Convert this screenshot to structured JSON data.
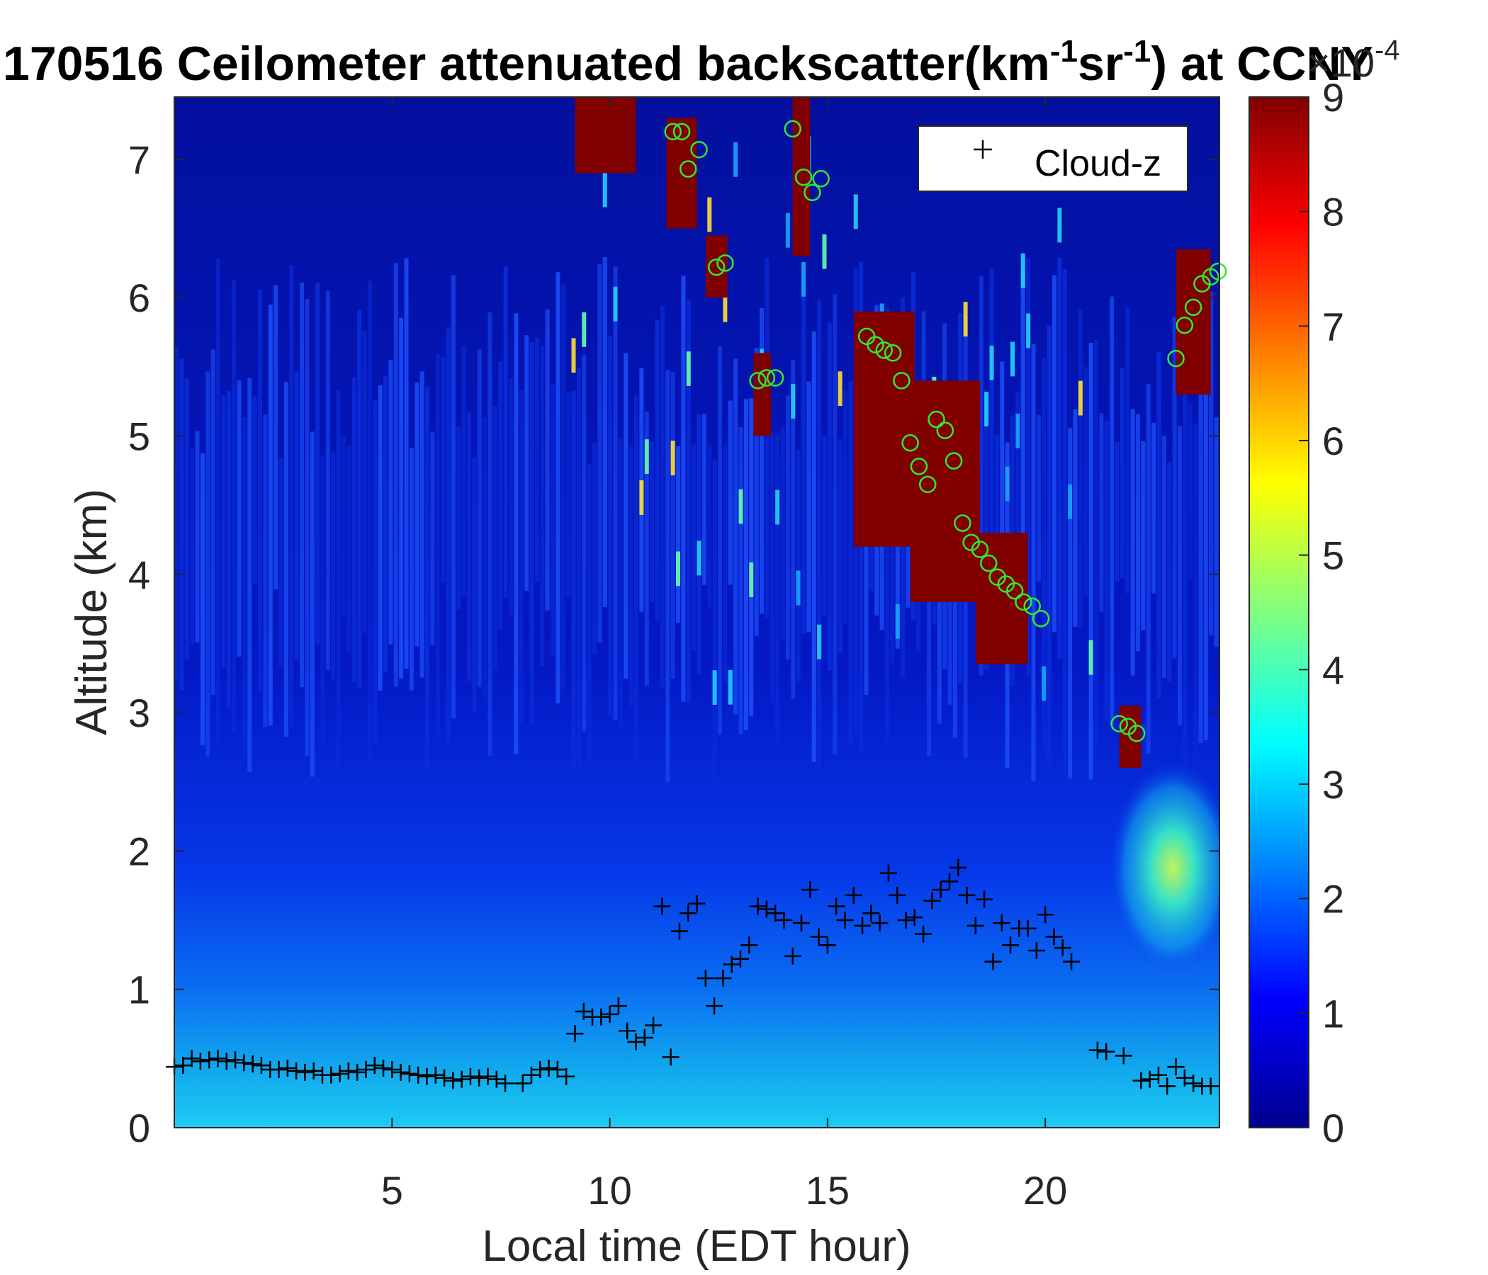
{
  "chart_data": {
    "type": "heatmap",
    "title": {
      "main": "170516 Ceilometer attenuated backscatter(km",
      "sup1": "-1",
      "mid": "sr",
      "sup2": "-1",
      "end": ") at CCNY"
    },
    "xlabel": "Local time (EDT hour)",
    "ylabel": "Altitude (km)",
    "xlim": [
      0,
      24
    ],
    "ylim": [
      0,
      7.45
    ],
    "xticks": [
      5,
      10,
      15,
      20
    ],
    "yticks": [
      0,
      1,
      2,
      3,
      4,
      5,
      6,
      7
    ],
    "colorbar": {
      "colormap": "jet",
      "clim": [
        0,
        9
      ],
      "ticks": [
        0,
        1,
        2,
        3,
        4,
        5,
        6,
        7,
        8,
        9
      ],
      "exponent_base": "×10",
      "exponent_power": "-4"
    },
    "legend": {
      "location": "top-right",
      "entries": [
        {
          "marker": "+",
          "label": "Cloud-z",
          "color": "#000000"
        }
      ]
    },
    "dense_cloud_regions": [
      {
        "t_start": 9.2,
        "t_end": 10.6,
        "z_low": 6.9,
        "z_high": 7.45
      },
      {
        "t_start": 11.3,
        "t_end": 12.0,
        "z_low": 6.5,
        "z_high": 7.3
      },
      {
        "t_start": 12.2,
        "t_end": 12.7,
        "z_low": 6.0,
        "z_high": 6.45
      },
      {
        "t_start": 13.3,
        "t_end": 13.7,
        "z_low": 5.0,
        "z_high": 5.6
      },
      {
        "t_start": 14.2,
        "t_end": 14.6,
        "z_low": 6.3,
        "z_high": 7.45
      },
      {
        "t_start": 15.6,
        "t_end": 17.0,
        "z_low": 4.2,
        "z_high": 5.9
      },
      {
        "t_start": 16.9,
        "t_end": 18.5,
        "z_low": 3.8,
        "z_high": 5.4
      },
      {
        "t_start": 18.4,
        "t_end": 19.6,
        "z_low": 3.35,
        "z_high": 4.3
      },
      {
        "t_start": 21.7,
        "t_end": 22.2,
        "z_low": 2.6,
        "z_high": 3.05
      },
      {
        "t_start": 23.0,
        "t_end": 23.8,
        "z_low": 5.3,
        "z_high": 6.35
      }
    ],
    "series": [
      {
        "name": "Cloud-z",
        "marker": "+",
        "color": "#000000",
        "x": [
          0.0,
          0.2,
          0.4,
          0.6,
          0.8,
          1.0,
          1.2,
          1.4,
          1.6,
          1.8,
          2.0,
          2.2,
          2.4,
          2.6,
          2.8,
          3.0,
          3.2,
          3.4,
          3.6,
          3.8,
          4.0,
          4.2,
          4.4,
          4.6,
          4.8,
          5.0,
          5.2,
          5.4,
          5.6,
          5.8,
          6.0,
          6.2,
          6.4,
          6.6,
          6.8,
          7.0,
          7.2,
          7.4,
          7.6,
          8.0,
          8.2,
          8.4,
          8.6,
          8.8,
          9.0,
          9.2,
          9.4,
          9.6,
          9.8,
          10.0,
          10.2,
          10.4,
          10.6,
          10.8,
          11.0,
          11.2,
          11.4,
          11.6,
          11.8,
          12.0,
          12.2,
          12.4,
          12.6,
          12.8,
          13.0,
          13.2,
          13.4,
          13.6,
          13.8,
          14.0,
          14.2,
          14.4,
          14.6,
          14.8,
          15.0,
          15.2,
          15.4,
          15.6,
          15.8,
          16.0,
          16.2,
          16.4,
          16.6,
          16.8,
          17.0,
          17.2,
          17.4,
          17.6,
          17.8,
          18.0,
          18.2,
          18.4,
          18.6,
          18.8,
          19.0,
          19.2,
          19.4,
          19.6,
          19.8,
          20.0,
          20.2,
          20.4,
          20.6,
          21.2,
          21.4,
          21.8,
          22.2,
          22.4,
          22.6,
          22.8,
          23.0,
          23.2,
          23.4,
          23.6,
          23.8
        ],
        "y": [
          0.44,
          0.45,
          0.5,
          0.48,
          0.49,
          0.5,
          0.48,
          0.49,
          0.47,
          0.46,
          0.45,
          0.42,
          0.42,
          0.43,
          0.41,
          0.4,
          0.41,
          0.38,
          0.38,
          0.39,
          0.41,
          0.4,
          0.42,
          0.45,
          0.43,
          0.42,
          0.4,
          0.39,
          0.38,
          0.37,
          0.38,
          0.36,
          0.34,
          0.35,
          0.37,
          0.36,
          0.37,
          0.35,
          0.32,
          0.32,
          0.38,
          0.42,
          0.43,
          0.42,
          0.37,
          0.68,
          0.84,
          0.8,
          0.8,
          0.82,
          0.88,
          0.7,
          0.62,
          0.65,
          0.74,
          1.6,
          0.51,
          1.42,
          1.55,
          1.62,
          1.08,
          0.88,
          1.08,
          1.18,
          1.22,
          1.32,
          1.6,
          1.58,
          1.55,
          1.5,
          1.24,
          1.48,
          1.72,
          1.38,
          1.32,
          1.6,
          1.5,
          1.68,
          1.46,
          1.55,
          1.48,
          1.84,
          1.68,
          1.5,
          1.52,
          1.4,
          1.64,
          1.72,
          1.78,
          1.88,
          1.68,
          1.46,
          1.65,
          1.2,
          1.48,
          1.32,
          1.44,
          1.44,
          1.28,
          1.54,
          1.38,
          1.3,
          1.2,
          0.56,
          0.55,
          0.52,
          0.34,
          0.35,
          0.38,
          0.3,
          0.44,
          0.36,
          0.32,
          0.3,
          0.3
        ]
      },
      {
        "name": "",
        "marker": "o",
        "color": "#33e833",
        "x": [
          11.45,
          11.65,
          11.8,
          12.05,
          12.45,
          12.65,
          13.4,
          13.6,
          13.8,
          14.2,
          14.45,
          14.65,
          14.85,
          15.9,
          16.1,
          16.3,
          16.5,
          16.7,
          16.9,
          17.1,
          17.3,
          17.5,
          17.7,
          17.9,
          18.1,
          18.3,
          18.5,
          18.7,
          18.9,
          19.1,
          19.3,
          19.5,
          19.7,
          19.9,
          21.7,
          21.9,
          22.1,
          23.0,
          23.2,
          23.4,
          23.6,
          23.8,
          24.0
        ],
        "y": [
          7.2,
          7.2,
          6.93,
          7.07,
          6.22,
          6.25,
          5.4,
          5.42,
          5.42,
          7.22,
          6.87,
          6.76,
          6.86,
          5.72,
          5.66,
          5.62,
          5.6,
          5.4,
          4.95,
          4.78,
          4.65,
          5.12,
          5.04,
          4.82,
          4.37,
          4.23,
          4.18,
          4.08,
          3.98,
          3.93,
          3.88,
          3.8,
          3.77,
          3.68,
          2.92,
          2.9,
          2.85,
          5.56,
          5.8,
          5.93,
          6.1,
          6.15,
          6.19
        ]
      }
    ]
  }
}
